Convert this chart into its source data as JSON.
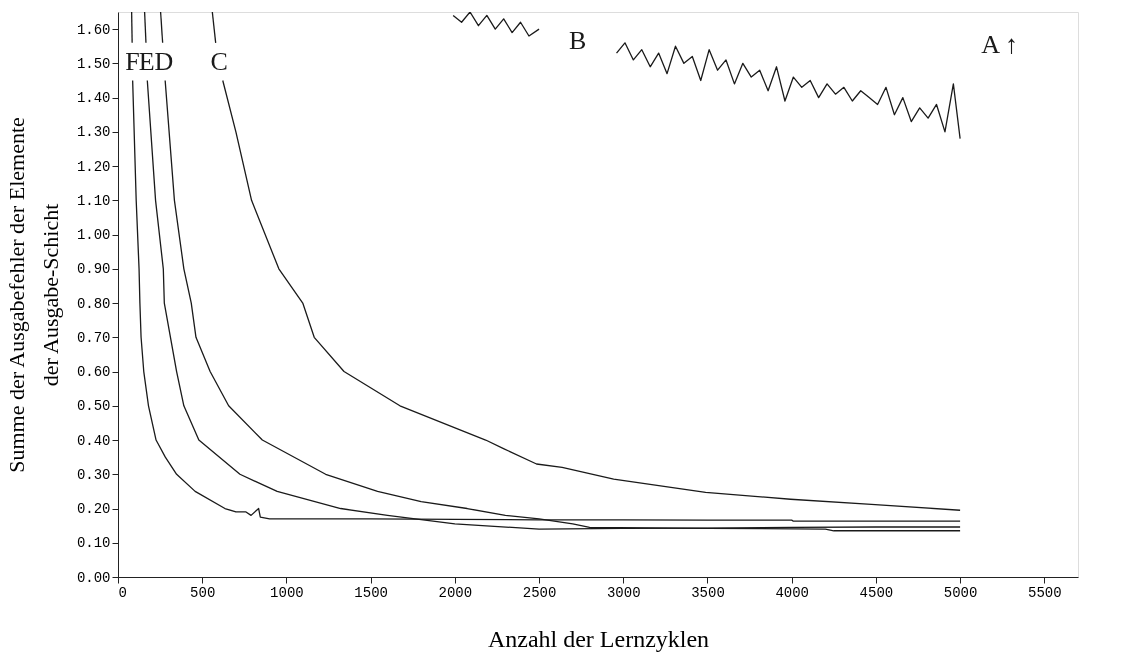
{
  "chart_data": {
    "type": "line",
    "xlabel": "Anzahl der Lernzyklen",
    "ylabel": "Summe der Ausgabefehler der Elemente\nder Ausgabe-Schicht",
    "xlim": [
      0,
      5700
    ],
    "ylim": [
      0,
      1.65
    ],
    "xticks": [
      0,
      500,
      1000,
      1500,
      2000,
      2500,
      3000,
      3500,
      4000,
      4500,
      5000,
      5500
    ],
    "yticks": [
      {
        "value": 0,
        "label": "0.00"
      },
      {
        "value": 0.1,
        "label": "0.10"
      },
      {
        "value": 0.2,
        "label": "0.20"
      },
      {
        "value": 0.3,
        "label": "0.30"
      },
      {
        "value": 0.4,
        "label": "0.40"
      },
      {
        "value": 0.5,
        "label": "0.50"
      },
      {
        "value": 0.6,
        "label": "0.60"
      },
      {
        "value": 0.7,
        "label": "0.70"
      },
      {
        "value": 0.8,
        "label": "0.80"
      },
      {
        "value": 0.9,
        "label": "0.90"
      },
      {
        "value": 1.0,
        "label": "1.00"
      },
      {
        "value": 1.1,
        "label": "1.10"
      },
      {
        "value": 1.2,
        "label": "1.20"
      },
      {
        "value": 1.3,
        "label": "1.30"
      },
      {
        "value": 1.4,
        "label": "1.40"
      },
      {
        "value": 1.5,
        "label": "1.50"
      },
      {
        "value": 1.6,
        "label": "1.60"
      }
    ],
    "grid": false,
    "marker": "none",
    "line_style": "solid",
    "series": [
      {
        "name": "F",
        "color": "#1a1a1a",
        "x": [
          81,
          84,
          86,
          87,
          108,
          125,
          130,
          137,
          153,
          181,
          226,
          281,
          348,
          458,
          635,
          700,
          760,
          790,
          835,
          845,
          900,
          1500,
          2000,
          2500,
          3000,
          3500,
          4000,
          4010,
          4500,
          5000
        ],
        "values": [
          1.65,
          1.56,
          null,
          1.45,
          1.1,
          0.9,
          0.8,
          0.7,
          0.6,
          0.5,
          0.4,
          0.35,
          0.3,
          0.25,
          0.2,
          0.19,
          0.19,
          0.18,
          0.2,
          0.175,
          0.17,
          0.17,
          0.168,
          0.167,
          0.167,
          0.166,
          0.166,
          0.163,
          0.163,
          0.163
        ]
      },
      {
        "name": "E",
        "color": "#1a1a1a",
        "x": [
          158,
          166,
          170,
          174,
          223,
          269,
          275,
          348,
          391,
          480,
          724,
          945,
          1322,
          1600,
          2000,
          2500,
          3000,
          3500,
          4000,
          4500,
          5000
        ],
        "values": [
          1.65,
          1.56,
          null,
          1.45,
          1.1,
          0.9,
          0.8,
          0.6,
          0.5,
          0.4,
          0.3,
          0.25,
          0.2,
          0.18,
          0.155,
          0.14,
          0.142,
          0.143,
          0.145,
          0.146,
          0.146
        ]
      },
      {
        "name": "D",
        "color": "#1a1a1a",
        "x": [
          253,
          265,
          272,
          280,
          335,
          391,
          435,
          463,
          547,
          657,
          857,
          1233,
          1541,
          1800,
          2073,
          2300,
          2500,
          2700,
          2800,
          3500,
          4200,
          4250,
          5000
        ],
        "values": [
          1.65,
          1.56,
          null,
          1.45,
          1.1,
          0.9,
          0.8,
          0.7,
          0.6,
          0.5,
          0.4,
          0.3,
          0.25,
          0.22,
          0.2,
          0.18,
          0.17,
          0.155,
          0.145,
          0.142,
          0.14,
          0.135,
          0.135
        ]
      },
      {
        "name": "C",
        "color": "#1a1a1a",
        "x": [
          560,
          580,
          600,
          622,
          700,
          793,
          955,
          1097,
          1165,
          1342,
          1674,
          2183,
          2289,
          2485,
          2637,
          2943,
          3489,
          3993,
          4473,
          5000
        ],
        "values": [
          1.65,
          1.56,
          null,
          1.45,
          1.3,
          1.1,
          0.9,
          0.8,
          0.7,
          0.6,
          0.5,
          0.4,
          0.375,
          0.33,
          0.32,
          0.286,
          0.247,
          0.227,
          0.212,
          0.195
        ]
      },
      {
        "name": "B",
        "color": "#1a1a1a",
        "x": [
          1990,
          2040,
          2090,
          2140,
          2190,
          2240,
          2290,
          2340,
          2390,
          2440,
          2500,
          2750,
          2960,
          3010,
          3060,
          3110,
          3160,
          3210,
          3260,
          3310,
          3360,
          3410,
          3460,
          3510,
          3560,
          3610,
          3660,
          3710,
          3760,
          3810,
          3860,
          3910,
          3960,
          4010,
          4060,
          4110,
          4160,
          4210,
          4260,
          4310,
          4360,
          4410,
          4460,
          4510,
          4560,
          4610,
          4660,
          4710,
          4760,
          4810,
          4860,
          4910,
          4960,
          5000
        ],
        "values": [
          1.64,
          1.62,
          1.65,
          1.61,
          1.64,
          1.6,
          1.63,
          1.59,
          1.62,
          1.58,
          1.6,
          null,
          1.53,
          1.56,
          1.51,
          1.54,
          1.49,
          1.53,
          1.47,
          1.55,
          1.5,
          1.52,
          1.45,
          1.54,
          1.48,
          1.51,
          1.44,
          1.5,
          1.46,
          1.48,
          1.42,
          1.49,
          1.39,
          1.46,
          1.43,
          1.45,
          1.4,
          1.44,
          1.41,
          1.43,
          1.39,
          1.42,
          1.4,
          1.38,
          1.43,
          1.35,
          1.4,
          1.33,
          1.37,
          1.34,
          1.38,
          1.3,
          1.44,
          1.28
        ]
      }
    ],
    "annotations": [
      "A ↑"
    ]
  }
}
